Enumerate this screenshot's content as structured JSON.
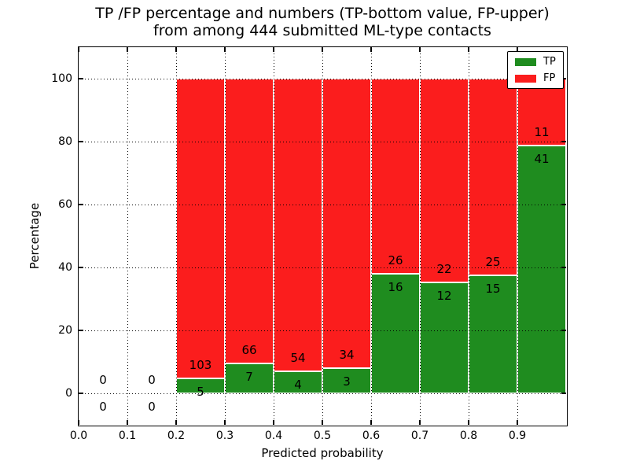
{
  "figure": {
    "title_line1": "TP /FP percentage and numbers (TP-bottom value, FP-upper)",
    "title_line2": "from among 444 submitted ML-type contacts",
    "background_color": "#ffffff"
  },
  "chart_data": {
    "type": "bar",
    "stacked": true,
    "title": "TP /FP percentage and numbers (TP-bottom value, FP-upper) from among 444 submitted ML-type contacts",
    "xlabel": "Predicted probability",
    "ylabel": "Percentage",
    "xlim": [
      0.0,
      1.0
    ],
    "ylim": [
      -10,
      110
    ],
    "xticks": [
      0.0,
      0.1,
      0.2,
      0.3,
      0.4,
      0.5,
      0.6,
      0.7,
      0.8,
      0.9
    ],
    "xtick_labels": [
      "0.0",
      "0.1",
      "0.2",
      "0.3",
      "0.4",
      "0.5",
      "0.6",
      "0.7",
      "0.8",
      "0.9"
    ],
    "yticks": [
      0,
      20,
      40,
      60,
      80,
      100
    ],
    "ytick_labels": [
      "0",
      "20",
      "40",
      "60",
      "80",
      "100"
    ],
    "grid": {
      "style": "dotted",
      "color": "#000000",
      "drawn_over_bars": true
    },
    "colors": {
      "tp": "#1f8c1f",
      "fp": "#fb1d1d",
      "bar_edge": "#ffffff",
      "axis": "#000000"
    },
    "legend": {
      "position": "upper right",
      "entries": [
        {
          "label": "TP",
          "color": "#1f8c1f"
        },
        {
          "label": "FP",
          "color": "#fb1d1d"
        }
      ]
    },
    "total_contacts": 444,
    "bin_width": 0.1,
    "annotation_note": "FP count shown above TP/FP boundary, TP count shown below it",
    "bins": [
      {
        "x_range": [
          0.0,
          0.1
        ],
        "tp_count": 0,
        "fp_count": 0,
        "tp_pct": 0,
        "fp_pct": 0
      },
      {
        "x_range": [
          0.1,
          0.2
        ],
        "tp_count": 0,
        "fp_count": 0,
        "tp_pct": 0,
        "fp_pct": 0
      },
      {
        "x_range": [
          0.2,
          0.3
        ],
        "tp_count": 5,
        "fp_count": 103,
        "tp_pct": 4.63,
        "fp_pct": 95.37
      },
      {
        "x_range": [
          0.3,
          0.4
        ],
        "tp_count": 7,
        "fp_count": 66,
        "tp_pct": 9.59,
        "fp_pct": 90.41
      },
      {
        "x_range": [
          0.4,
          0.5
        ],
        "tp_count": 4,
        "fp_count": 54,
        "tp_pct": 6.9,
        "fp_pct": 93.1
      },
      {
        "x_range": [
          0.5,
          0.6
        ],
        "tp_count": 3,
        "fp_count": 34,
        "tp_pct": 8.11,
        "fp_pct": 91.89
      },
      {
        "x_range": [
          0.6,
          0.7
        ],
        "tp_count": 16,
        "fp_count": 26,
        "tp_pct": 38.1,
        "fp_pct": 61.9
      },
      {
        "x_range": [
          0.7,
          0.8
        ],
        "tp_count": 12,
        "fp_count": 22,
        "tp_pct": 35.29,
        "fp_pct": 64.71
      },
      {
        "x_range": [
          0.8,
          0.9
        ],
        "tp_count": 15,
        "fp_count": 25,
        "tp_pct": 37.5,
        "fp_pct": 62.5
      },
      {
        "x_range": [
          0.9,
          1.0
        ],
        "tp_count": 41,
        "fp_count": 11,
        "tp_pct": 78.85,
        "fp_pct": 21.15
      }
    ]
  }
}
